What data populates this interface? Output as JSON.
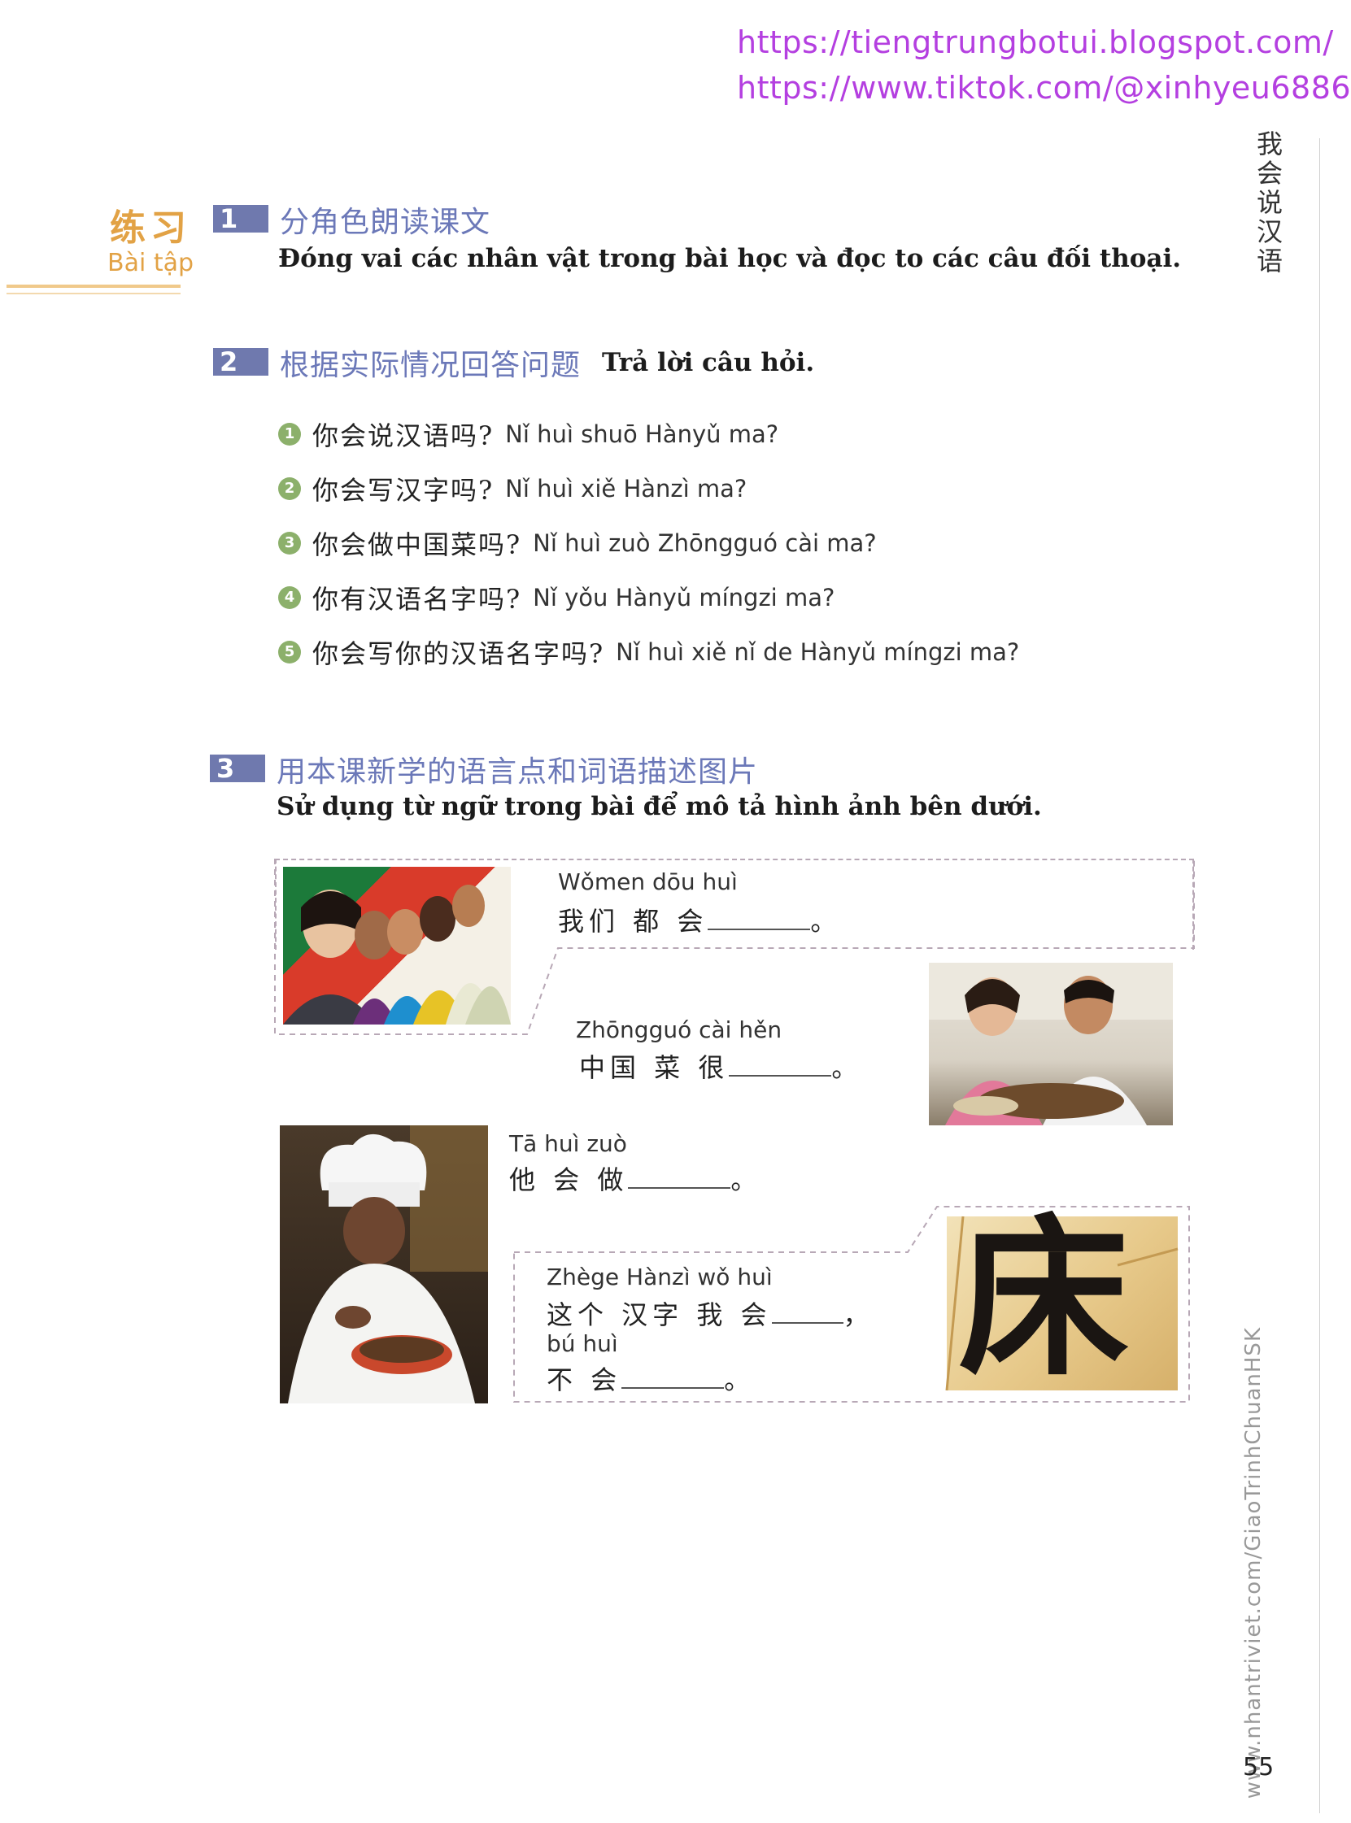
{
  "header": {
    "link1": "https://tiengtrungbotui.blogspot.com/",
    "link2": "https://www.tiktok.com/@xinhyeu6886",
    "side_title": "我会说汉语"
  },
  "section": {
    "label_zh": "练习",
    "label_vi": "Bài tập"
  },
  "ex1": {
    "number": "1",
    "title_zh": "分角色朗读课文",
    "title_vi": "Đóng vai các nhân vật trong bài học và đọc to các câu đối thoại."
  },
  "ex2": {
    "number": "2",
    "title_zh": "根据实际情况回答问题",
    "title_vi": "Trả lời câu hỏi.",
    "questions": [
      {
        "n": "1",
        "zh": "你会说汉语吗?",
        "py": "Nǐ huì shuō Hànyǔ ma?"
      },
      {
        "n": "2",
        "zh": "你会写汉字吗?",
        "py": "Nǐ huì xiě Hànzì ma?"
      },
      {
        "n": "3",
        "zh": "你会做中国菜吗?",
        "py": "Nǐ huì zuò Zhōngguó cài ma?"
      },
      {
        "n": "4",
        "zh": "你有汉语名字吗?",
        "py": "Nǐ yǒu Hànyǔ míngzi ma?"
      },
      {
        "n": "5",
        "zh": "你会写你的汉语名字吗?",
        "py": "Nǐ huì xiě nǐ de Hànyǔ míngzi ma?"
      }
    ]
  },
  "ex3": {
    "number": "3",
    "title_zh": "用本课新学的语言点和词语描述图片",
    "title_vi": "Sử dụng từ ngữ trong bài để mô tả hình ảnh bên dưới.",
    "items": [
      {
        "py": "Wǒmen dōu huì",
        "zh": "我们  都 会",
        "end": "。"
      },
      {
        "py": "Zhōngguó cài hěn",
        "zh": "中国    菜 很",
        "end": "。"
      },
      {
        "py": "Tā huì zuò",
        "zh": "他 会 做",
        "end": "。"
      },
      {
        "py": "Zhège Hànzì wǒ huì",
        "zh": "这个 汉字 我 会",
        "end": "，",
        "py2": "bú huì",
        "zh2": "不 会",
        "end2": "。"
      }
    ],
    "calligraphy_char": "床"
  },
  "footer": {
    "url": "www.nhantriviet.com/GiaoTrinhChuanHSK",
    "page_number": "55"
  },
  "colors": {
    "link": "#b43fe0",
    "accent_orange": "#e2a245",
    "accent_blue": "#6f79ae",
    "bullet_green": "#8cb06b"
  }
}
